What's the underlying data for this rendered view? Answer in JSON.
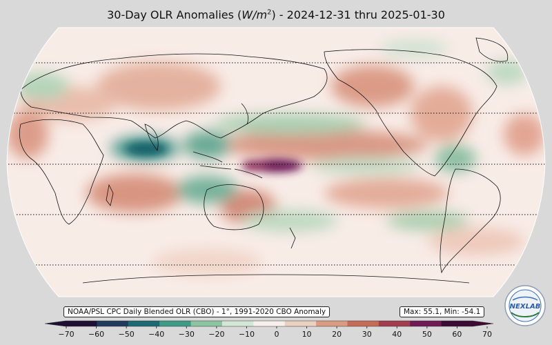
{
  "title": {
    "prefix": "30-Day OLR Anomalies (",
    "unit_base": "W/m",
    "unit_exp": "2",
    "suffix": ") - 2024-12-31 thru 2025-01-30"
  },
  "source_label": "NOAA/PSL CPC Daily Blended OLR (CBO) - 1°, 1991-2020 CBO Anomaly",
  "stats": {
    "label": "Max: 55.1,  Min: -54.1",
    "max": 55.1,
    "min": -54.1
  },
  "colorbar": {
    "ticks": [
      "−70",
      "−60",
      "−50",
      "−40",
      "−30",
      "−20",
      "−10",
      "0",
      "10",
      "20",
      "30",
      "40",
      "50",
      "60",
      "70"
    ],
    "colors": [
      "#1f0f33",
      "#1f3a5e",
      "#1d6b72",
      "#3f9a86",
      "#8cc3a0",
      "#d4e7d6",
      "#f7efec",
      "#ead0c1",
      "#d99c83",
      "#c56a57",
      "#a33c4f",
      "#6e1a55",
      "#3d0a33"
    ]
  },
  "logo": {
    "text": "NEXLAB",
    "icon": "globe-logo-icon"
  },
  "map": {
    "projection": "robinson",
    "latitude_lines": 5,
    "anomaly_patches": [
      {
        "kind": "negative",
        "strength": 0.9,
        "region": "Indian Ocean near equator"
      },
      {
        "kind": "negative",
        "strength": 0.7,
        "region": "Maritime continent west"
      },
      {
        "kind": "negative",
        "strength": 0.6,
        "region": "Northern Australia"
      },
      {
        "kind": "positive",
        "strength": 1.0,
        "region": "Central equatorial Pacific"
      },
      {
        "kind": "positive",
        "strength": 0.6,
        "region": "North Pacific / Western North America"
      },
      {
        "kind": "positive",
        "strength": 0.5,
        "region": "Southern Africa / Indian Ocean south"
      },
      {
        "kind": "positive",
        "strength": 0.5,
        "region": "Eastern Australia"
      },
      {
        "kind": "positive",
        "strength": 0.4,
        "region": "Asia / China"
      },
      {
        "kind": "negative",
        "strength": 0.4,
        "region": "South Pacific convergence"
      },
      {
        "kind": "negative",
        "strength": 0.4,
        "region": "South America east"
      },
      {
        "kind": "positive",
        "strength": 0.4,
        "region": "North Atlantic"
      }
    ]
  }
}
